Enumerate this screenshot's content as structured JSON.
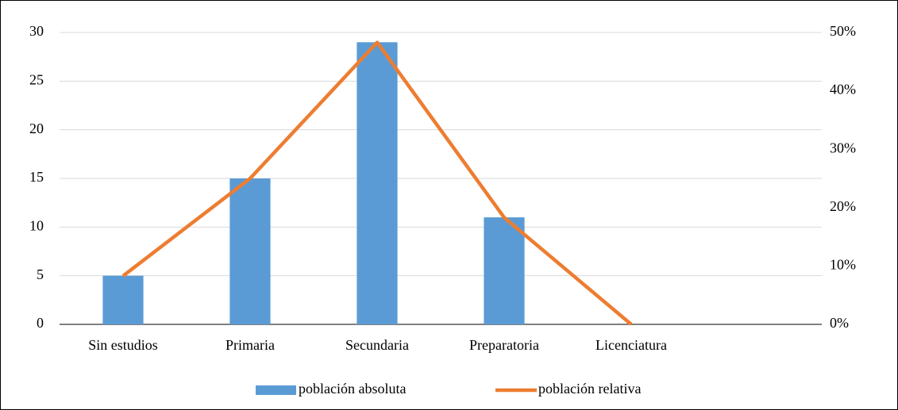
{
  "chart_data": {
    "type": "bar-line",
    "categories": [
      "Sin estudios",
      "Primaria",
      "Secundaria",
      "Preparatoria",
      "Licenciatura",
      null
    ],
    "series": [
      {
        "name": "población absoluta",
        "type": "bar",
        "color": "#5b9bd5",
        "values": [
          5,
          15,
          29,
          11,
          0,
          null
        ]
      },
      {
        "name": "población relativa",
        "type": "line",
        "axis": "y2",
        "color": "#ed7d31",
        "values": [
          8.3,
          25,
          48.3,
          18.3,
          0,
          null
        ]
      }
    ],
    "ylim": [
      0,
      30
    ],
    "yticks": [
      0,
      5,
      10,
      15,
      20,
      25,
      30
    ],
    "y2lim": [
      0,
      50
    ],
    "y2ticks": [
      {
        "value": 0,
        "label": "0%"
      },
      {
        "value": 10,
        "label": "10%"
      },
      {
        "value": 20,
        "label": "20%"
      },
      {
        "value": 30,
        "label": "30%"
      },
      {
        "value": 40,
        "label": "40%"
      },
      {
        "value": 50,
        "label": "50%"
      }
    ],
    "grid": true,
    "legend": "bottom"
  }
}
